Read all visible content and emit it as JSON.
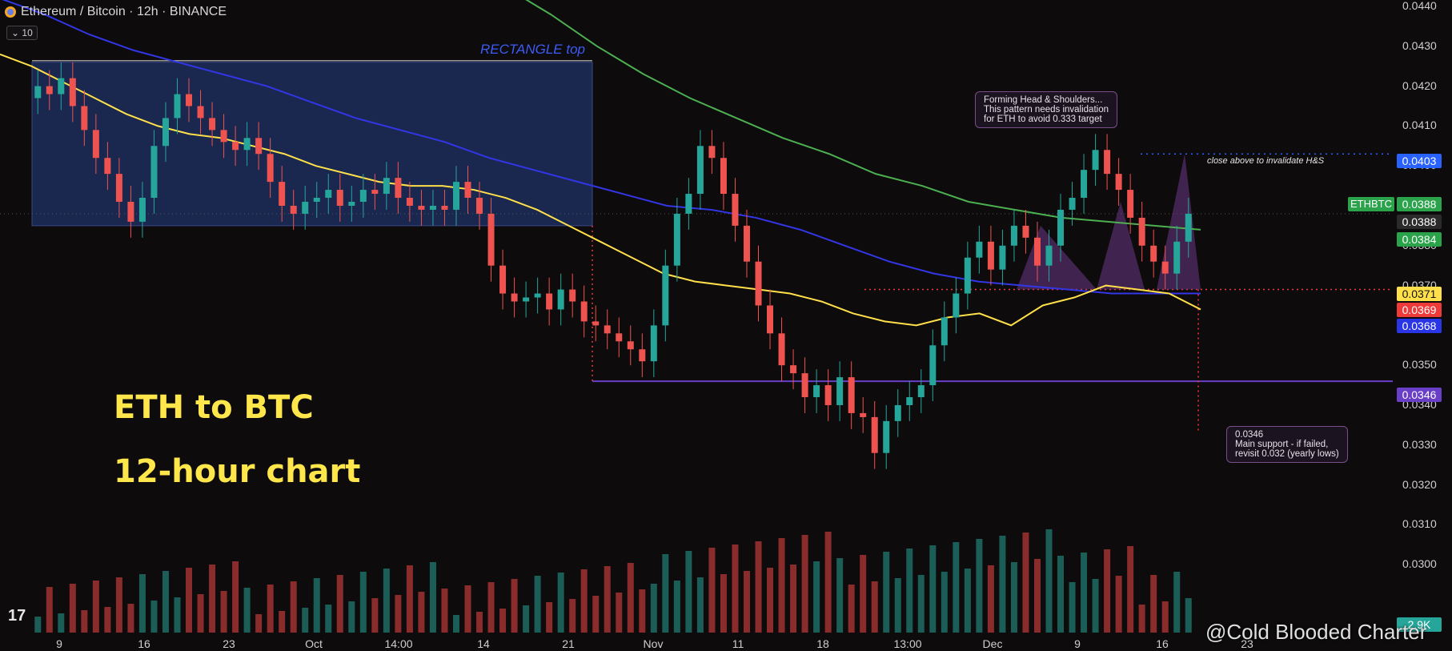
{
  "header": {
    "title": "Ethereum / Bitcoin · 12h · BINANCE",
    "interval_pill": "10"
  },
  "overlay_text": {
    "line1": "ETH to BTC",
    "line2": "12-hour chart"
  },
  "annotations": {
    "rectangle": "RECTANGLE top",
    "hs_box": [
      "Forming Head & Shoulders...",
      "This pattern needs invalidation",
      "for ETH to avoid 0.333 target"
    ],
    "close_above": "close above to invalidate H&S",
    "support_box": [
      "0.0346",
      "Main support - if failed,",
      "revisit 0.032 (yearly lows)"
    ]
  },
  "price_badges": {
    "ticker": "ETHBTC",
    "b0403": "0.0403",
    "b0388a": "0.0388",
    "b0388b": "0.0388",
    "b0384": "0.0384",
    "b0371": "0.0371",
    "b0369": "0.0369",
    "b0368": "0.0368",
    "b0346": "0.0346",
    "volume": "2.9K"
  },
  "colors": {
    "up": "#26a69a",
    "down": "#ef5350",
    "ma_yellow": "#ffe04a",
    "ma_blue": "#3336e6",
    "ma_green": "#4caf50",
    "support": "#6a3fc7",
    "rect_fill": "#1d2d5c"
  },
  "watermark": "@Cold Blooded Charter",
  "chart_data": {
    "type": "candlestick",
    "title": "Ethereum / Bitcoin · 12h · BINANCE",
    "ylim": [
      0.0293,
      0.044
    ],
    "y_ticks": [
      "0.0440",
      "0.0430",
      "0.0420",
      "0.0410",
      "0.0400",
      "0.0390",
      "0.0380",
      "0.0370",
      "0.0360",
      "0.0350",
      "0.0340",
      "0.0330",
      "0.0320",
      "0.0310",
      "0.0300"
    ],
    "x_ticks": [
      "9",
      "16",
      "23",
      "Oct",
      "14:00",
      "14",
      "21",
      "Nov",
      "11",
      "18",
      "13:00",
      "Dec",
      "9",
      "16",
      "23"
    ],
    "support_level": 0.0346,
    "neckline": 0.0369,
    "invalidation_level": 0.0403,
    "rectangle": {
      "top": 0.0426,
      "bottom": 0.0385
    },
    "close_series": [
      0.042,
      0.0418,
      0.0422,
      0.0415,
      0.0409,
      0.0402,
      0.0398,
      0.0391,
      0.0386,
      0.0392,
      0.0405,
      0.0412,
      0.0418,
      0.0415,
      0.0412,
      0.0409,
      0.0406,
      0.0404,
      0.0407,
      0.0403,
      0.0396,
      0.039,
      0.0388,
      0.0391,
      0.0392,
      0.0394,
      0.039,
      0.0391,
      0.0394,
      0.0393,
      0.0397,
      0.0392,
      0.039,
      0.0389,
      0.039,
      0.0389,
      0.0396,
      0.0392,
      0.0388,
      0.0375,
      0.0368,
      0.0366,
      0.0367,
      0.0368,
      0.0364,
      0.0369,
      0.0366,
      0.0361,
      0.036,
      0.0358,
      0.0356,
      0.0354,
      0.0351,
      0.036,
      0.0375,
      0.0388,
      0.0393,
      0.0405,
      0.0402,
      0.0393,
      0.0385,
      0.0376,
      0.0365,
      0.0358,
      0.035,
      0.0348,
      0.0342,
      0.0345,
      0.034,
      0.0347,
      0.0338,
      0.0337,
      0.0328,
      0.0336,
      0.034,
      0.0342,
      0.0345,
      0.0355,
      0.0362,
      0.0368,
      0.0377,
      0.0381,
      0.0374,
      0.038,
      0.0385,
      0.0382,
      0.0375,
      0.038,
      0.0389,
      0.0392,
      0.0399,
      0.0404,
      0.0398,
      0.0394,
      0.0387,
      0.038,
      0.0376,
      0.0373,
      0.0381,
      0.0388
    ],
    "ma_yellow": [
      0.0428,
      0.0425,
      0.0421,
      0.0417,
      0.0413,
      0.041,
      0.0408,
      0.0407,
      0.0405,
      0.0403,
      0.04,
      0.0398,
      0.0396,
      0.0395,
      0.0395,
      0.0394,
      0.0392,
      0.0389,
      0.0385,
      0.0381,
      0.0377,
      0.0373,
      0.0371,
      0.037,
      0.0369,
      0.0368,
      0.0366,
      0.0363,
      0.0361,
      0.036,
      0.0362,
      0.0363,
      0.036,
      0.0365,
      0.0367,
      0.037,
      0.0369,
      0.0368,
      0.0364
    ],
    "ma_blue": [
      0.0442,
      0.0438,
      0.0433,
      0.0429,
      0.0426,
      0.0423,
      0.042,
      0.0416,
      0.0412,
      0.0409,
      0.0406,
      0.0402,
      0.0399,
      0.0396,
      0.0393,
      0.039,
      0.0389,
      0.0387,
      0.0384,
      0.038,
      0.0376,
      0.0373,
      0.0371,
      0.037,
      0.0369,
      0.0368,
      0.0368,
      0.0368
    ],
    "ma_green": [
      0.0445,
      0.0438,
      0.043,
      0.0423,
      0.0417,
      0.0412,
      0.0407,
      0.0403,
      0.0398,
      0.0395,
      0.0391,
      0.0389,
      0.0387,
      0.0386,
      0.0385,
      0.0384
    ]
  }
}
